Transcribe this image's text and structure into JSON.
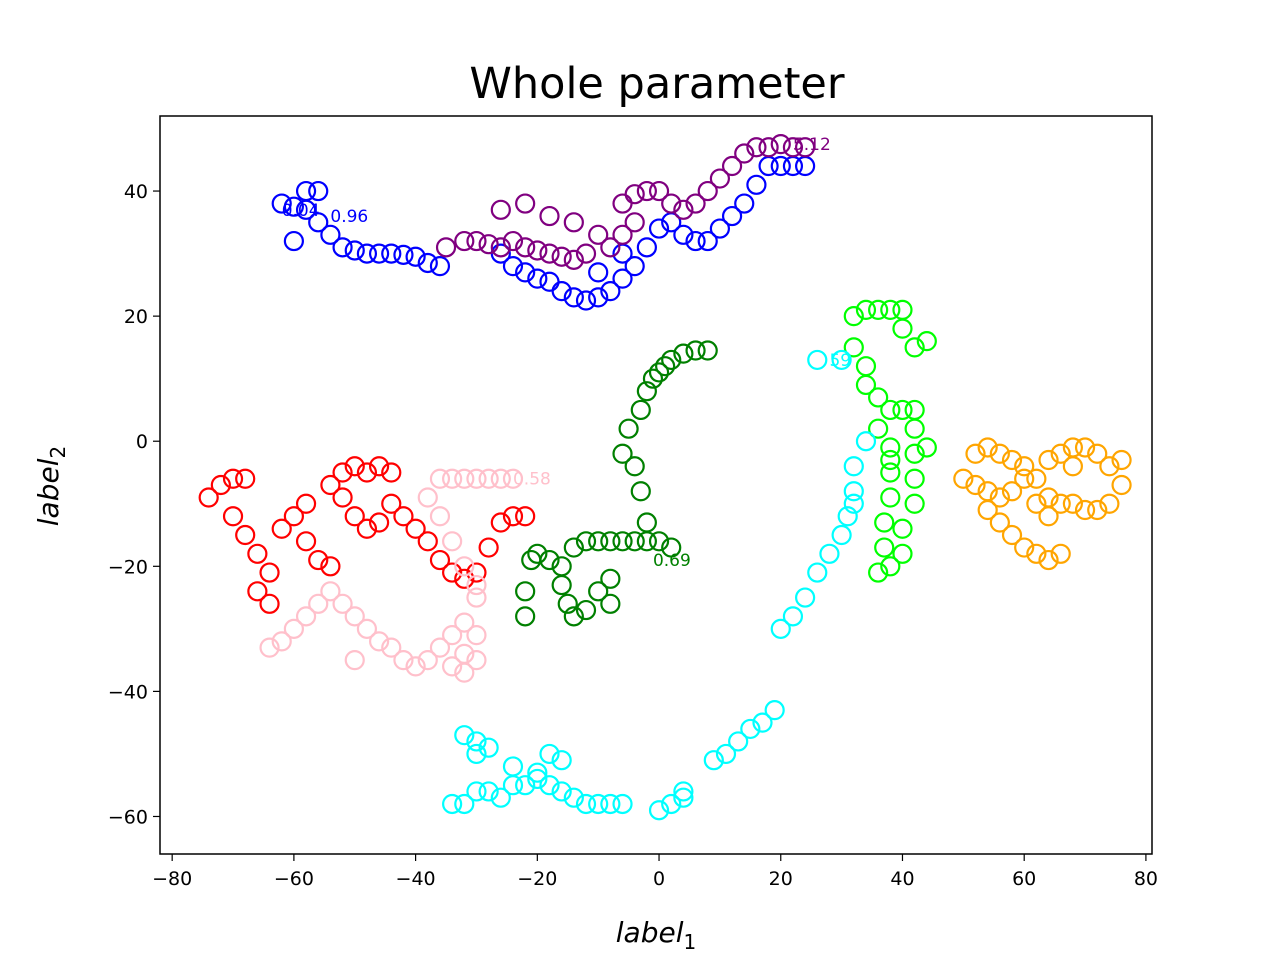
{
  "chart_data": {
    "type": "scatter",
    "title": "Whole parameter",
    "xlabel": "label",
    "xlabel_sub": "1",
    "ylabel": "label",
    "ylabel_sub": "2",
    "xlim": [
      -82,
      81
    ],
    "ylim": [
      -66,
      52
    ],
    "xticks": [
      -80,
      -60,
      -40,
      -20,
      0,
      20,
      40,
      60,
      80
    ],
    "yticks": [
      40,
      20,
      0,
      -20,
      -40,
      -60
    ],
    "xtick_labels": [
      "−80",
      "−60",
      "−40",
      "−20",
      "0",
      "20",
      "40",
      "60",
      "80"
    ],
    "ytick_labels": [
      "40",
      "20",
      "0",
      "−20",
      "−40",
      "−60"
    ],
    "grid": false,
    "legend": "none",
    "marker": "text (small numeric labels drawn at each point)",
    "series": [
      {
        "color": "#0000ff",
        "points": [
          [
            -62,
            38
          ],
          [
            -60,
            37.5
          ],
          [
            -58,
            37
          ],
          [
            -56,
            35
          ],
          [
            -54,
            33
          ],
          [
            -52,
            31
          ],
          [
            -50,
            30.5
          ],
          [
            -48,
            30
          ],
          [
            -46,
            30
          ],
          [
            -44,
            30
          ],
          [
            -42,
            29.8
          ],
          [
            -40,
            29.5
          ],
          [
            -38,
            28.5
          ],
          [
            -36,
            28
          ],
          [
            -58,
            40
          ],
          [
            -56,
            40
          ],
          [
            -60,
            32
          ],
          [
            -26,
            30
          ],
          [
            -24,
            28
          ],
          [
            -22,
            27
          ],
          [
            -20,
            26
          ],
          [
            -18,
            25.5
          ],
          [
            -16,
            24
          ],
          [
            -14,
            23
          ],
          [
            -12,
            22.5
          ],
          [
            -10,
            23
          ],
          [
            -8,
            24
          ],
          [
            -6,
            26
          ],
          [
            -4,
            28
          ],
          [
            -2,
            31
          ],
          [
            0,
            34
          ],
          [
            2,
            35
          ],
          [
            4,
            33
          ],
          [
            6,
            32
          ],
          [
            8,
            32
          ],
          [
            10,
            34
          ],
          [
            12,
            36
          ],
          [
            14,
            38
          ],
          [
            16,
            41
          ],
          [
            18,
            44
          ],
          [
            20,
            44
          ],
          [
            22,
            44
          ],
          [
            24,
            44
          ],
          [
            -10,
            27
          ],
          [
            -6,
            30
          ]
        ]
      },
      {
        "color": "#800080",
        "points": [
          [
            -35,
            31
          ],
          [
            -32,
            32
          ],
          [
            -30,
            32
          ],
          [
            -28,
            31.5
          ],
          [
            -26,
            31
          ],
          [
            -24,
            32
          ],
          [
            -22,
            31
          ],
          [
            -20,
            30.5
          ],
          [
            -18,
            30
          ],
          [
            -16,
            29.5
          ],
          [
            -14,
            29
          ],
          [
            -12,
            30
          ],
          [
            -26,
            37
          ],
          [
            -22,
            38
          ],
          [
            -18,
            36
          ],
          [
            -14,
            35
          ],
          [
            -10,
            33
          ],
          [
            -8,
            31
          ],
          [
            -6,
            33
          ],
          [
            -4,
            35
          ],
          [
            -6,
            38
          ],
          [
            -4,
            39.5
          ],
          [
            -2,
            40
          ],
          [
            0,
            40
          ],
          [
            2,
            38
          ],
          [
            4,
            37
          ],
          [
            6,
            38
          ],
          [
            8,
            40
          ],
          [
            10,
            42
          ],
          [
            12,
            44
          ],
          [
            14,
            46
          ],
          [
            16,
            47
          ],
          [
            18,
            47
          ],
          [
            20,
            47.5
          ],
          [
            22,
            47
          ],
          [
            24,
            47
          ]
        ]
      },
      {
        "color": "#ff0000",
        "points": [
          [
            -74,
            -9
          ],
          [
            -72,
            -7
          ],
          [
            -70,
            -6
          ],
          [
            -68,
            -6
          ],
          [
            -70,
            -12
          ],
          [
            -68,
            -15
          ],
          [
            -66,
            -18
          ],
          [
            -64,
            -21
          ],
          [
            -66,
            -24
          ],
          [
            -64,
            -26
          ],
          [
            -62,
            -14
          ],
          [
            -60,
            -12
          ],
          [
            -58,
            -16
          ],
          [
            -56,
            -19
          ],
          [
            -54,
            -20
          ],
          [
            -58,
            -10
          ],
          [
            -54,
            -7
          ],
          [
            -52,
            -5
          ],
          [
            -50,
            -4
          ],
          [
            -48,
            -5
          ],
          [
            -46,
            -4
          ],
          [
            -44,
            -5
          ],
          [
            -52,
            -9
          ],
          [
            -50,
            -12
          ],
          [
            -48,
            -14
          ],
          [
            -46,
            -13
          ],
          [
            -44,
            -10
          ],
          [
            -42,
            -12
          ],
          [
            -40,
            -14
          ],
          [
            -38,
            -16
          ],
          [
            -36,
            -19
          ],
          [
            -34,
            -21
          ],
          [
            -32,
            -22
          ],
          [
            -30,
            -21
          ],
          [
            -28,
            -17
          ],
          [
            -26,
            -13
          ],
          [
            -24,
            -12
          ],
          [
            -22,
            -12
          ]
        ]
      },
      {
        "color": "#ffc0cb",
        "points": [
          [
            -64,
            -33
          ],
          [
            -62,
            -32
          ],
          [
            -60,
            -30
          ],
          [
            -58,
            -28
          ],
          [
            -56,
            -26
          ],
          [
            -54,
            -24
          ],
          [
            -52,
            -26
          ],
          [
            -50,
            -28
          ],
          [
            -48,
            -30
          ],
          [
            -46,
            -32
          ],
          [
            -44,
            -33
          ],
          [
            -42,
            -35
          ],
          [
            -40,
            -36
          ],
          [
            -38,
            -35
          ],
          [
            -36,
            -33
          ],
          [
            -34,
            -31
          ],
          [
            -32,
            -29
          ],
          [
            -30,
            -31
          ],
          [
            -32,
            -34
          ],
          [
            -34,
            -36
          ],
          [
            -32,
            -37
          ],
          [
            -30,
            -35
          ],
          [
            -30,
            -25
          ],
          [
            -32,
            -20
          ],
          [
            -34,
            -16
          ],
          [
            -36,
            -12
          ],
          [
            -38,
            -9
          ],
          [
            -36,
            -6
          ],
          [
            -34,
            -6
          ],
          [
            -32,
            -6
          ],
          [
            -30,
            -6
          ],
          [
            -28,
            -6
          ],
          [
            -26,
            -6
          ],
          [
            -24,
            -6
          ],
          [
            -30,
            -23
          ],
          [
            -50,
            -35
          ]
        ]
      },
      {
        "color": "#008000",
        "points": [
          [
            -22,
            -28
          ],
          [
            -22,
            -24
          ],
          [
            -21,
            -19
          ],
          [
            -20,
            -18
          ],
          [
            -18,
            -19
          ],
          [
            -16,
            -20
          ],
          [
            -16,
            -23
          ],
          [
            -15,
            -26
          ],
          [
            -14,
            -28
          ],
          [
            -12,
            -27
          ],
          [
            -10,
            -24
          ],
          [
            -8,
            -22
          ],
          [
            -8,
            -26
          ],
          [
            -14,
            -17
          ],
          [
            -12,
            -16
          ],
          [
            -10,
            -16
          ],
          [
            -8,
            -16
          ],
          [
            -6,
            -16
          ],
          [
            -4,
            -16
          ],
          [
            -2,
            -16
          ],
          [
            0,
            -16
          ],
          [
            2,
            -17
          ],
          [
            -2,
            -13
          ],
          [
            -3,
            -8
          ],
          [
            -4,
            -4
          ],
          [
            -6,
            -2
          ],
          [
            -5,
            2
          ],
          [
            -3,
            5
          ],
          [
            -2,
            8
          ],
          [
            -1,
            10
          ],
          [
            0,
            11
          ],
          [
            1,
            12
          ],
          [
            2,
            13
          ],
          [
            4,
            14
          ],
          [
            6,
            14.5
          ],
          [
            8,
            14.5
          ]
        ]
      },
      {
        "color": "#00ff00",
        "points": [
          [
            32,
            20
          ],
          [
            34,
            21
          ],
          [
            36,
            21
          ],
          [
            38,
            21
          ],
          [
            40,
            21
          ],
          [
            32,
            15
          ],
          [
            34,
            12
          ],
          [
            34,
            9
          ],
          [
            36,
            7
          ],
          [
            38,
            5
          ],
          [
            36,
            2
          ],
          [
            38,
            -1
          ],
          [
            38,
            -5
          ],
          [
            38,
            -9
          ],
          [
            37,
            -13
          ],
          [
            37,
            -17
          ],
          [
            36,
            -21
          ],
          [
            38,
            -20
          ],
          [
            40,
            -18
          ],
          [
            40,
            -14
          ],
          [
            42,
            -10
          ],
          [
            42,
            -6
          ],
          [
            42,
            -2
          ],
          [
            42,
            2
          ],
          [
            40,
            5
          ],
          [
            42,
            5
          ],
          [
            44,
            -1
          ],
          [
            42,
            15
          ],
          [
            44,
            16
          ],
          [
            40,
            18
          ],
          [
            38,
            -3
          ]
        ]
      },
      {
        "color": "#00ffff",
        "points": [
          [
            34,
            0
          ],
          [
            32,
            -4
          ],
          [
            32,
            -8
          ],
          [
            31,
            -12
          ],
          [
            30,
            -15
          ],
          [
            28,
            -18
          ],
          [
            26,
            -21
          ],
          [
            24,
            -25
          ],
          [
            22,
            -28
          ],
          [
            20,
            -30
          ],
          [
            32,
            -10
          ],
          [
            26,
            13
          ],
          [
            30,
            13
          ],
          [
            -34,
            -58
          ],
          [
            -32,
            -58
          ],
          [
            -30,
            -56
          ],
          [
            -28,
            -56
          ],
          [
            -26,
            -57
          ],
          [
            -24,
            -55
          ],
          [
            -22,
            -55
          ],
          [
            -20,
            -54
          ],
          [
            -18,
            -55
          ],
          [
            -16,
            -56
          ],
          [
            -14,
            -57
          ],
          [
            -12,
            -58
          ],
          [
            -10,
            -58
          ],
          [
            -8,
            -58
          ],
          [
            -6,
            -58
          ],
          [
            -30,
            -50
          ],
          [
            -32,
            -47
          ],
          [
            -30,
            -48
          ],
          [
            -28,
            -49
          ],
          [
            -24,
            -52
          ],
          [
            -20,
            -53
          ],
          [
            -18,
            -50
          ],
          [
            -16,
            -51
          ],
          [
            0,
            -59
          ],
          [
            2,
            -58
          ],
          [
            4,
            -57
          ],
          [
            4,
            -56
          ],
          [
            9,
            -51
          ],
          [
            11,
            -50
          ],
          [
            13,
            -48
          ],
          [
            15,
            -46
          ],
          [
            17,
            -45
          ],
          [
            19,
            -43
          ]
        ]
      },
      {
        "color": "#ffa500",
        "points": [
          [
            50,
            -6
          ],
          [
            52,
            -7
          ],
          [
            54,
            -8
          ],
          [
            56,
            -9
          ],
          [
            58,
            -8
          ],
          [
            60,
            -6
          ],
          [
            62,
            -6
          ],
          [
            64,
            -9
          ],
          [
            66,
            -10
          ],
          [
            68,
            -10
          ],
          [
            70,
            -11
          ],
          [
            72,
            -11
          ],
          [
            74,
            -10
          ],
          [
            76,
            -7
          ],
          [
            74,
            -4
          ],
          [
            72,
            -2
          ],
          [
            70,
            -1
          ],
          [
            68,
            -1
          ],
          [
            66,
            -2
          ],
          [
            64,
            -3
          ],
          [
            52,
            -2
          ],
          [
            54,
            -1
          ],
          [
            56,
            -2
          ],
          [
            58,
            -3
          ],
          [
            60,
            -4
          ],
          [
            54,
            -11
          ],
          [
            56,
            -13
          ],
          [
            58,
            -15
          ],
          [
            60,
            -17
          ],
          [
            62,
            -18
          ],
          [
            64,
            -19
          ],
          [
            66,
            -18
          ],
          [
            62,
            -10
          ],
          [
            64,
            -12
          ],
          [
            68,
            -4
          ],
          [
            76,
            -3
          ]
        ]
      }
    ],
    "annotations": [
      {
        "text": "5.12",
        "x": 22,
        "y": 47.5,
        "color": "#800080"
      },
      {
        "text": "59",
        "x": 28,
        "y": 13,
        "color": "#00ffff"
      },
      {
        "text": "0.04",
        "x": -62,
        "y": 37,
        "color": "#0000ff"
      },
      {
        "text": "0.96",
        "x": -54,
        "y": 36,
        "color": "#0000ff"
      },
      {
        "text": "0.58",
        "x": -24,
        "y": -6,
        "color": "#ffc0cb"
      },
      {
        "text": "0.69",
        "x": -1,
        "y": -19,
        "color": "#008000"
      }
    ]
  }
}
